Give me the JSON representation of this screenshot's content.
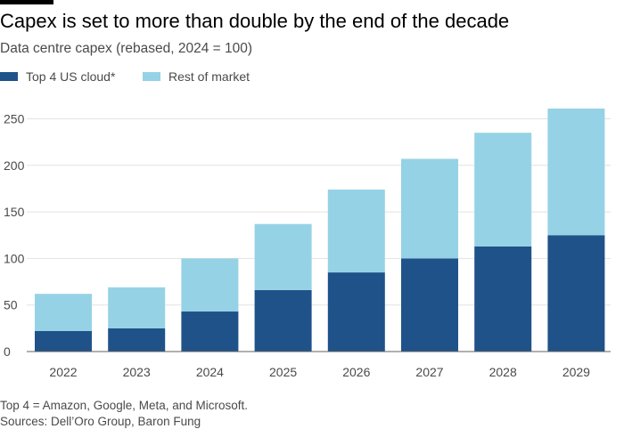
{
  "header": {
    "title": "Capex is set to more than double by the end of the decade",
    "subtitle": "Data centre capex (rebased, 2024 = 100)"
  },
  "legend": {
    "items": [
      {
        "label": "Top 4 US cloud*",
        "color": "#1f5289"
      },
      {
        "label": "Rest of market",
        "color": "#96d2e6"
      }
    ]
  },
  "footer": {
    "note": "Top 4 = Amazon, Google, Meta, and Microsoft.",
    "sources": "Sources: Dell’Oro Group, Baron Fung"
  },
  "chart_data": {
    "type": "bar",
    "stacked": true,
    "categories": [
      "2022",
      "2023",
      "2024",
      "2025",
      "2026",
      "2027",
      "2028",
      "2029"
    ],
    "series": [
      {
        "name": "Top 4 US cloud*",
        "values": [
          22,
          25,
          43,
          66,
          85,
          100,
          113,
          125
        ],
        "color": "#1f5289"
      },
      {
        "name": "Rest of market",
        "values": [
          40,
          44,
          57,
          71,
          89,
          107,
          122,
          136
        ],
        "color": "#96d2e6"
      }
    ],
    "ylim": [
      0,
      260
    ],
    "yticks": [
      0,
      50,
      100,
      150,
      200,
      250
    ],
    "xlabel": "",
    "ylabel": "",
    "grid": true,
    "legend_position": "top-left"
  }
}
